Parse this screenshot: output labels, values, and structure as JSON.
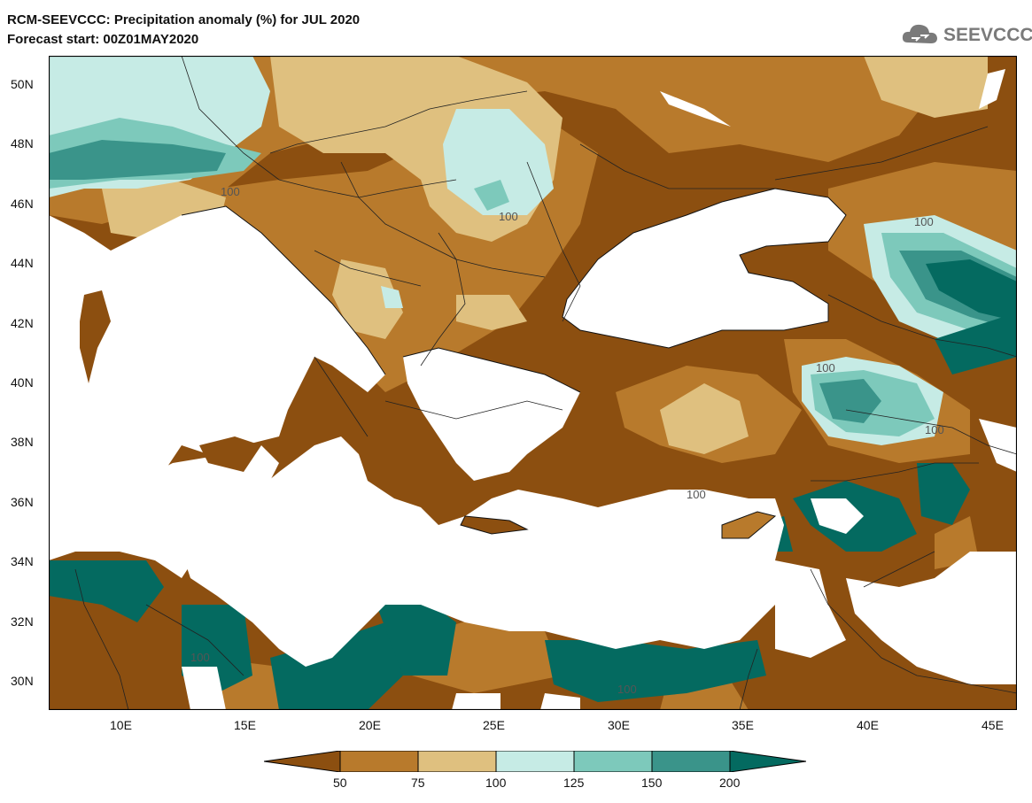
{
  "header": {
    "title": "RCM-SEEVCCC: Precipitation anomaly (%) for JUL 2020",
    "subtitle": "Forecast start: 00Z01MAY2020"
  },
  "logo": {
    "text": "SEEVCCC",
    "icon": "cloud-icon"
  },
  "axes": {
    "lat_labels": [
      "50N",
      "48N",
      "46N",
      "44N",
      "42N",
      "40N",
      "38N",
      "36N",
      "34N",
      "32N",
      "30N"
    ],
    "lon_labels": [
      "10E",
      "15E",
      "20E",
      "25E",
      "30E",
      "35E",
      "40E",
      "45E"
    ]
  },
  "contour_labels": [
    "100",
    "100",
    "100",
    "100",
    "100",
    "100",
    "100",
    "100"
  ],
  "colorbar": {
    "ticks": [
      "50",
      "75",
      "100",
      "125",
      "150",
      "200"
    ],
    "colors": [
      "#8c4f10",
      "#b87a2c",
      "#dfc07f",
      "#c6ebe5",
      "#7dc9bb",
      "#3a948a",
      "#046a60"
    ]
  },
  "colors": {
    "land_low": "#8c4f10",
    "land_mid": "#b87a2c",
    "land_near": "#dfc07f",
    "wet1": "#c6ebe5",
    "wet2": "#7dc9bb",
    "wet3": "#3a948a",
    "wet4": "#046a60",
    "sea": "#ffffff"
  }
}
